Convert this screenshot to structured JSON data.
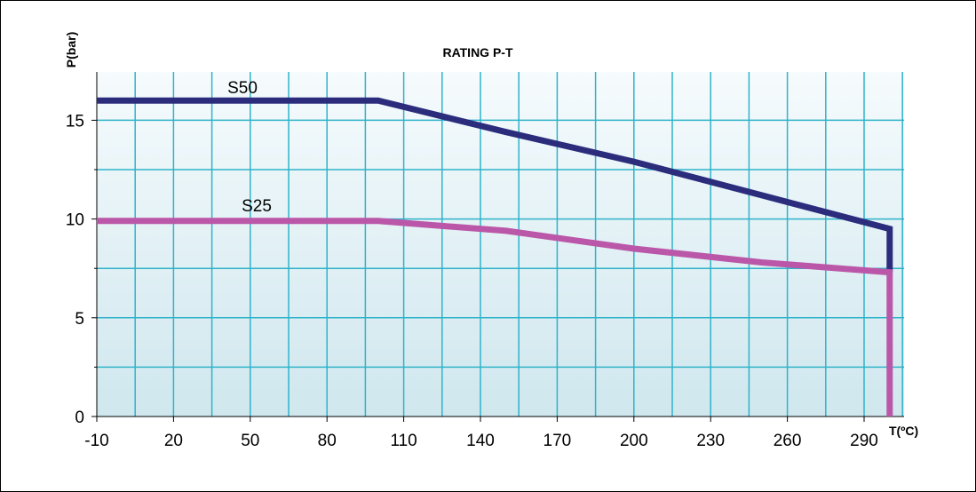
{
  "chart_data": {
    "type": "line",
    "title": "RATING P-T",
    "ylabel": "P(bar)",
    "xlabel": "T(ºC)",
    "x_tick_labels": [
      "-10",
      "20",
      "50",
      "80",
      "110",
      "140",
      "170",
      "200",
      "230",
      "260",
      "290"
    ],
    "y_tick_labels": [
      "0",
      "5",
      "10",
      "15"
    ],
    "xlim": [
      -10,
      300
    ],
    "ylim": [
      0,
      16
    ],
    "grid": true,
    "series": [
      {
        "name": "S50",
        "color": "#2b2d7c",
        "points": [
          [
            -10,
            16
          ],
          [
            100,
            16
          ],
          [
            150,
            14.4
          ],
          [
            200,
            12.9
          ],
          [
            250,
            11.2
          ],
          [
            300,
            9.5
          ],
          [
            300,
            7.3
          ]
        ]
      },
      {
        "name": "S25",
        "color": "#bb57a8",
        "points": [
          [
            -10,
            9.9
          ],
          [
            100,
            9.9
          ],
          [
            150,
            9.4
          ],
          [
            200,
            8.5
          ],
          [
            250,
            7.8
          ],
          [
            300,
            7.3
          ],
          [
            300,
            0
          ]
        ]
      }
    ]
  }
}
